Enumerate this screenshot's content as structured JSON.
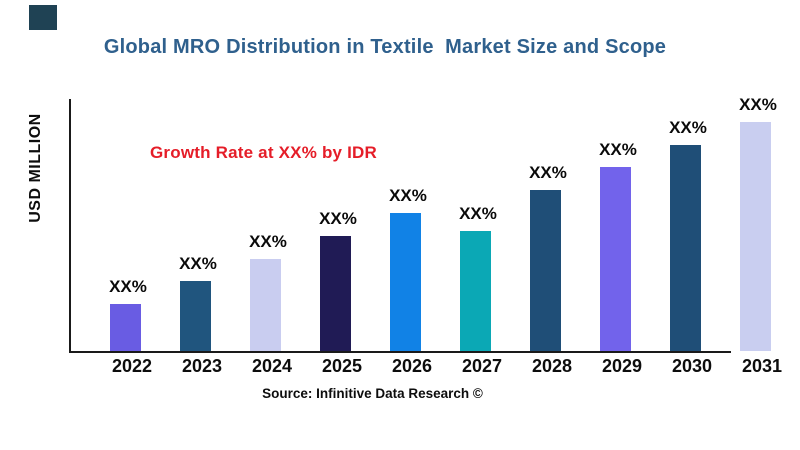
{
  "header": {
    "title": "Global MRO Distribution in Textile  Market Size and Scope",
    "title_color": "#2F608D",
    "brand_mark_color": "#1F4254"
  },
  "y_axis_label": "USD MILLION",
  "annotation": {
    "text": "Growth Rate at XX% by IDR",
    "color": "#E51D28"
  },
  "source_line": "Source: Infinitive Data Research ©",
  "chart_data": {
    "type": "bar",
    "title": "Global MRO Distribution in Textile  Market Size and Scope",
    "xlabel": "",
    "ylabel": "USD MILLION",
    "categories": [
      "2022",
      "2023",
      "2024",
      "2025",
      "2026",
      "2027",
      "2028",
      "2029",
      "2030",
      "2031"
    ],
    "series": [
      {
        "name": "MRO Distribution in Textile market size",
        "values": [
          47,
          70,
          92,
          115,
          138,
          120,
          161,
          184,
          206,
          229
        ],
        "values_unit": "relative_height"
      }
    ],
    "value_labels": [
      "XX%",
      "XX%",
      "XX%",
      "XX%",
      "XX%",
      "XX%",
      "XX%",
      "XX%",
      "XX%",
      "XX%"
    ],
    "bar_colors": [
      "#695CE3",
      "#20557E",
      "#C9CDF0",
      "#201B55",
      "#1182E6",
      "#0BA8B5",
      "#1F4E77",
      "#7263EB",
      "#1F4E77",
      "#C9CEF0"
    ],
    "annotations": [
      "Growth Rate at XX% by IDR"
    ],
    "grid": false,
    "legend": false,
    "y_tick_labels": [],
    "axis_color": "#1A1A1A"
  }
}
